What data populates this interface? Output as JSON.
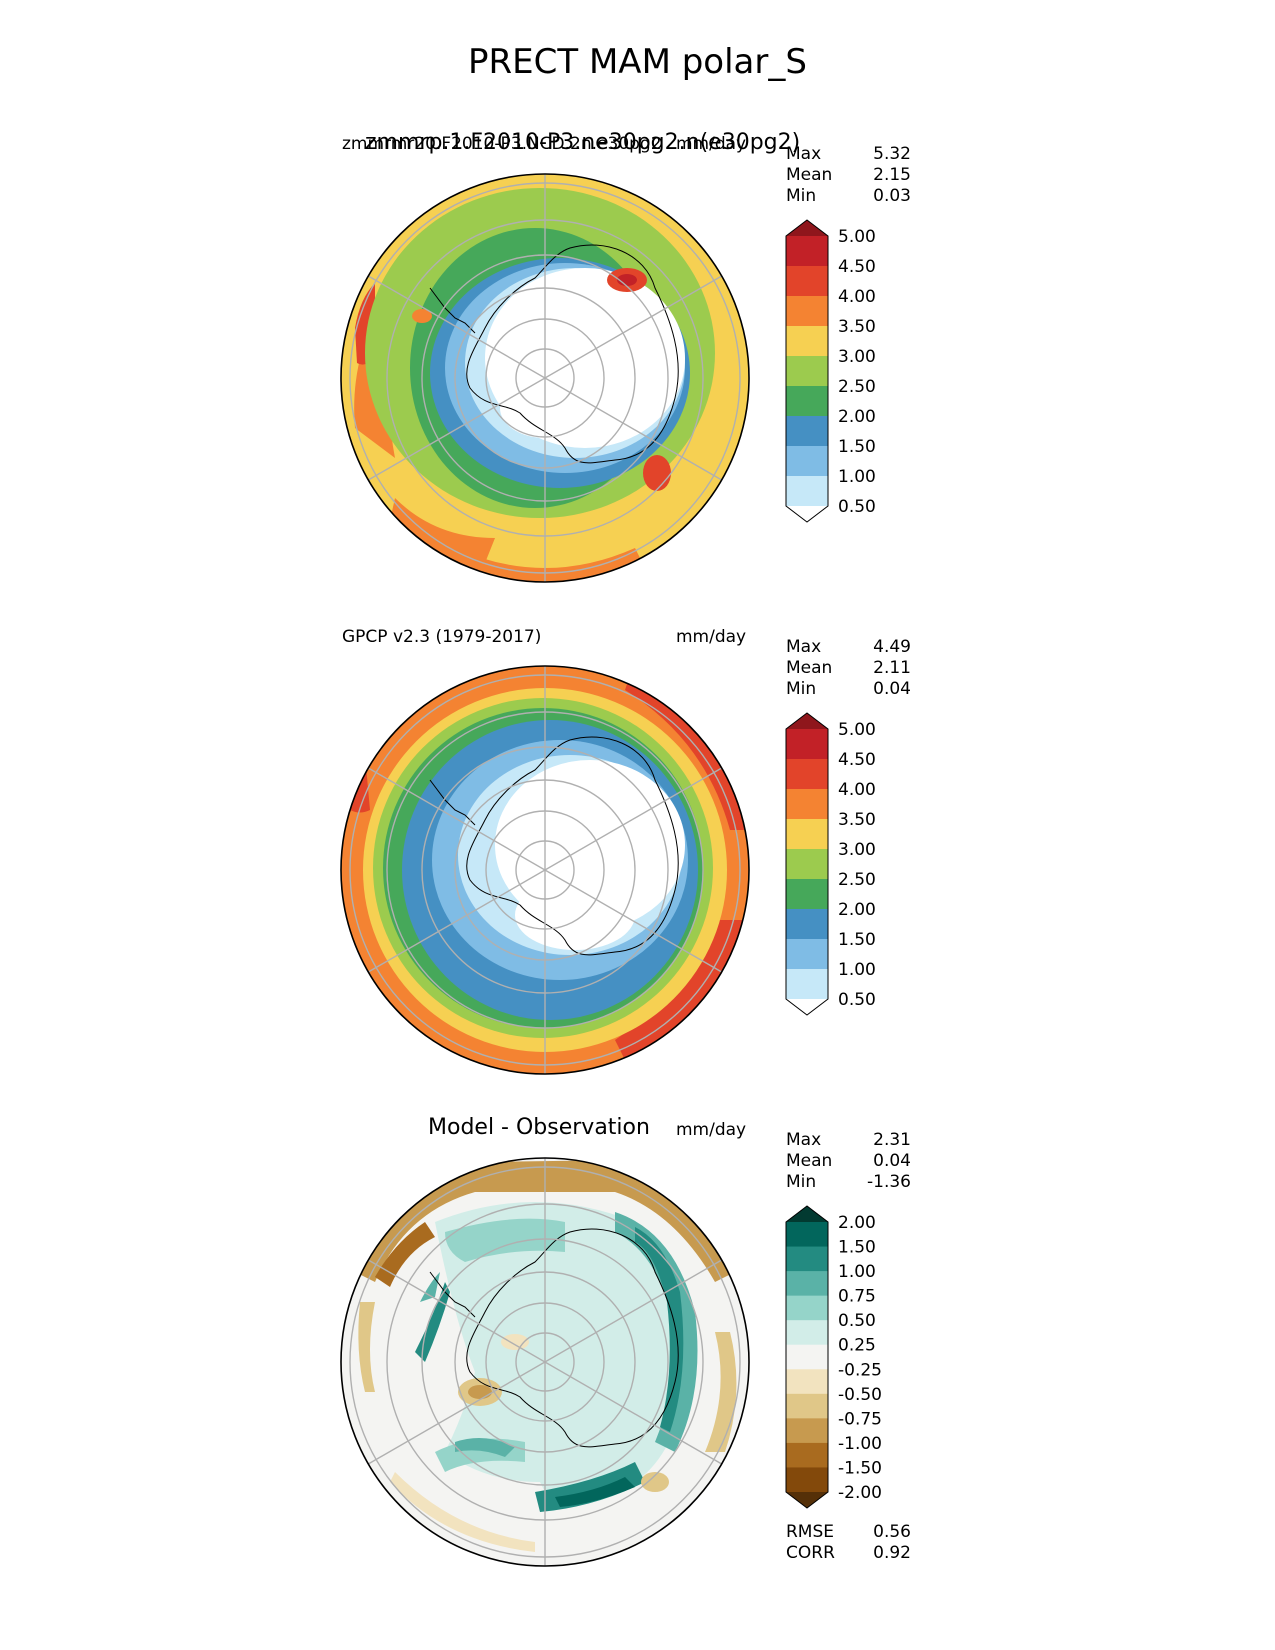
{
  "title": "PRECT MAM polar_S",
  "colors": {
    "precip": [
      "#ffffff",
      "#c6e8f8",
      "#7fbce5",
      "#4590c3",
      "#46a85a",
      "#9ccb4e",
      "#f6d052",
      "#f48332",
      "#e2442a",
      "#c22127",
      "#8f161c"
    ],
    "diff": [
      "#553008",
      "#83490b",
      "#a96b1f",
      "#c79a4f",
      "#e0c788",
      "#f2e3bf",
      "#f4f4f2",
      "#d2ede8",
      "#95d4c9",
      "#5ab2a7",
      "#238b81",
      "#02665c",
      "#023a31"
    ]
  },
  "panels": [
    {
      "left_title": "zmmrmr20.F2010-P3.NCD.2n.e30pg2",
      "center_title": "zmmrp.1.F2010-P3.ne30pg2.n(e30pg2)",
      "right_title": "mm/day",
      "stats": {
        "max_label": "Max",
        "max": "5.32",
        "mean_label": "Mean",
        "mean": "2.15",
        "min_label": "Min",
        "min": "0.03"
      },
      "colorbar_labels": [
        "5.00",
        "4.50",
        "4.00",
        "3.50",
        "3.00",
        "2.50",
        "2.00",
        "1.50",
        "1.00",
        "0.50"
      ]
    },
    {
      "left_title": "GPCP v2.3 (1979-2017)",
      "right_title": "mm/day",
      "stats": {
        "max_label": "Max",
        "max": "4.49",
        "mean_label": "Mean",
        "mean": "2.11",
        "min_label": "Min",
        "min": "0.04"
      },
      "colorbar_labels": [
        "5.00",
        "4.50",
        "4.00",
        "3.50",
        "3.00",
        "2.50",
        "2.00",
        "1.50",
        "1.00",
        "0.50"
      ]
    },
    {
      "center_title": "Model - Observation",
      "right_title": "mm/day",
      "stats": {
        "max_label": "Max",
        "max": "2.31",
        "mean_label": "Mean",
        "mean": "0.04",
        "min_label": "Min",
        "min": "-1.36"
      },
      "colorbar_labels": [
        "2.00",
        "1.50",
        "1.00",
        "0.75",
        "0.50",
        "0.25",
        "-0.25",
        "-0.50",
        "-0.75",
        "-1.00",
        "-1.50",
        "-2.00"
      ],
      "metrics": {
        "rmse_label": "RMSE",
        "rmse": "0.56",
        "corr_label": "CORR",
        "corr": "0.92"
      }
    }
  ],
  "chart_data": [
    {
      "type": "heatmap",
      "title": "zmmrp.1.F2010-P3.ne30pg2.n(e30pg2)",
      "projection": "south polar stereographic",
      "units": "mm/day",
      "levels": [
        0.5,
        1.0,
        1.5,
        2.0,
        2.5,
        3.0,
        3.5,
        4.0,
        4.5,
        5.0
      ],
      "max": 5.32,
      "mean": 2.15,
      "min": 0.03
    },
    {
      "type": "heatmap",
      "title": "GPCP v2.3 (1979-2017)",
      "projection": "south polar stereographic",
      "units": "mm/day",
      "levels": [
        0.5,
        1.0,
        1.5,
        2.0,
        2.5,
        3.0,
        3.5,
        4.0,
        4.5,
        5.0
      ],
      "max": 4.49,
      "mean": 2.11,
      "min": 0.04
    },
    {
      "type": "heatmap",
      "title": "Model - Observation",
      "projection": "south polar stereographic",
      "units": "mm/day",
      "levels": [
        -2.0,
        -1.5,
        -1.0,
        -0.75,
        -0.5,
        -0.25,
        0.25,
        0.5,
        0.75,
        1.0,
        1.5,
        2.0
      ],
      "max": 2.31,
      "mean": 0.04,
      "min": -1.36,
      "rmse": 0.56,
      "corr": 0.92
    }
  ]
}
